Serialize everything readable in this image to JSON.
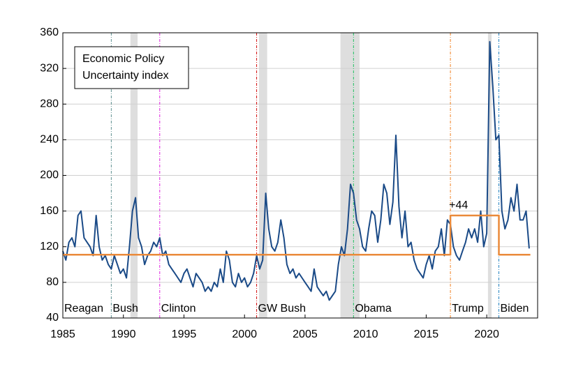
{
  "chart_data": {
    "type": "line",
    "annotations": {
      "box_lines": [
        "Economic Policy",
        "Uncertainty index"
      ],
      "step_label": "+44",
      "step_label_x": 2017,
      "step_label_y": 155
    },
    "x": [
      1985,
      1985.25,
      1985.5,
      1985.75,
      1986,
      1986.25,
      1986.5,
      1986.75,
      1987,
      1987.25,
      1987.5,
      1987.75,
      1988,
      1988.25,
      1988.5,
      1988.75,
      1989,
      1989.25,
      1989.5,
      1989.75,
      1990,
      1990.25,
      1990.5,
      1990.75,
      1991,
      1991.25,
      1991.5,
      1991.75,
      1992,
      1992.25,
      1992.5,
      1992.75,
      1993,
      1993.25,
      1993.5,
      1993.75,
      1994,
      1994.25,
      1994.5,
      1994.75,
      1995,
      1995.25,
      1995.5,
      1995.75,
      1996,
      1996.25,
      1996.5,
      1996.75,
      1997,
      1997.25,
      1997.5,
      1997.75,
      1998,
      1998.25,
      1998.5,
      1998.75,
      1999,
      1999.25,
      1999.5,
      1999.75,
      2000,
      2000.25,
      2000.5,
      2000.75,
      2001,
      2001.25,
      2001.5,
      2001.75,
      2002,
      2002.25,
      2002.5,
      2002.75,
      2003,
      2003.25,
      2003.5,
      2003.75,
      2004,
      2004.25,
      2004.5,
      2004.75,
      2005,
      2005.25,
      2005.5,
      2005.75,
      2006,
      2006.25,
      2006.5,
      2006.75,
      2007,
      2007.25,
      2007.5,
      2007.75,
      2008,
      2008.25,
      2008.5,
      2008.75,
      2009,
      2009.25,
      2009.5,
      2009.75,
      2010,
      2010.25,
      2010.5,
      2010.75,
      2011,
      2011.25,
      2011.5,
      2011.75,
      2012,
      2012.25,
      2012.5,
      2012.75,
      2013,
      2013.25,
      2013.5,
      2013.75,
      2014,
      2014.25,
      2014.5,
      2014.75,
      2015,
      2015.25,
      2015.5,
      2015.75,
      2016,
      2016.25,
      2016.5,
      2016.75,
      2017,
      2017.25,
      2017.5,
      2017.75,
      2018,
      2018.25,
      2018.5,
      2018.75,
      2019,
      2019.25,
      2019.5,
      2019.75,
      2020,
      2020.25,
      2020.5,
      2020.75,
      2021,
      2021.25,
      2021.5,
      2021.75,
      2022,
      2022.25,
      2022.5,
      2022.75,
      2023,
      2023.25,
      2023.5
    ],
    "series": [
      {
        "color": "#1a4a87",
        "values": [
          115,
          105,
          125,
          130,
          120,
          155,
          160,
          130,
          125,
          120,
          110,
          155,
          120,
          105,
          110,
          100,
          95,
          110,
          100,
          90,
          95,
          85,
          120,
          160,
          175,
          130,
          120,
          100,
          110,
          115,
          125,
          120,
          130,
          110,
          115,
          100,
          95,
          90,
          85,
          80,
          90,
          95,
          85,
          75,
          90,
          85,
          80,
          70,
          75,
          70,
          80,
          75,
          95,
          80,
          115,
          105,
          80,
          75,
          90,
          80,
          85,
          75,
          80,
          90,
          110,
          95,
          105,
          180,
          140,
          120,
          115,
          125,
          150,
          130,
          100,
          90,
          95,
          85,
          90,
          85,
          80,
          75,
          70,
          95,
          75,
          70,
          65,
          70,
          60,
          65,
          70,
          100,
          120,
          110,
          140,
          190,
          180,
          150,
          140,
          120,
          115,
          140,
          160,
          155,
          125,
          150,
          190,
          180,
          145,
          170,
          245,
          165,
          130,
          160,
          120,
          125,
          105,
          95,
          90,
          85,
          100,
          110,
          95,
          115,
          120,
          140,
          110,
          150,
          145,
          120,
          110,
          105,
          115,
          125,
          140,
          130,
          140,
          125,
          160,
          120,
          135,
          350,
          300,
          240,
          245,
          160,
          140,
          150,
          175,
          160,
          190,
          150,
          150,
          160,
          118
        ]
      },
      {
        "color": "#ea8a3a",
        "x": [
          1985,
          2017,
          2017,
          2021,
          2021,
          2023.6
        ],
        "values": [
          111,
          111,
          155,
          155,
          111,
          111
        ]
      }
    ],
    "presidents": [
      {
        "name": "Reagan",
        "start": 1985,
        "color": "#d4891a"
      },
      {
        "name": "Bush",
        "start": 1989,
        "color": "#5f8f8f"
      },
      {
        "name": "Clinton",
        "start": 1993,
        "color": "#e020e0"
      },
      {
        "name": "GW Bush",
        "start": 2001,
        "color": "#d41010"
      },
      {
        "name": "Obama",
        "start": 2009,
        "color": "#20c060"
      },
      {
        "name": "Trump",
        "start": 2017,
        "color": "#f08020"
      },
      {
        "name": "Biden",
        "start": 2021,
        "color": "#2080c0"
      }
    ],
    "recessions": [
      [
        1990.58,
        1991.17
      ],
      [
        2001.2,
        2001.87
      ],
      [
        2007.92,
        2009.5
      ],
      [
        2020.1,
        2020.4
      ]
    ],
    "xlim": [
      1985,
      2024.2
    ],
    "xticks": [
      1985,
      1990,
      1995,
      2000,
      2005,
      2010,
      2015,
      2020
    ],
    "ylim": [
      40,
      360
    ],
    "yticks": [
      40,
      80,
      120,
      160,
      200,
      240,
      280,
      320,
      360
    ],
    "grid": true
  }
}
